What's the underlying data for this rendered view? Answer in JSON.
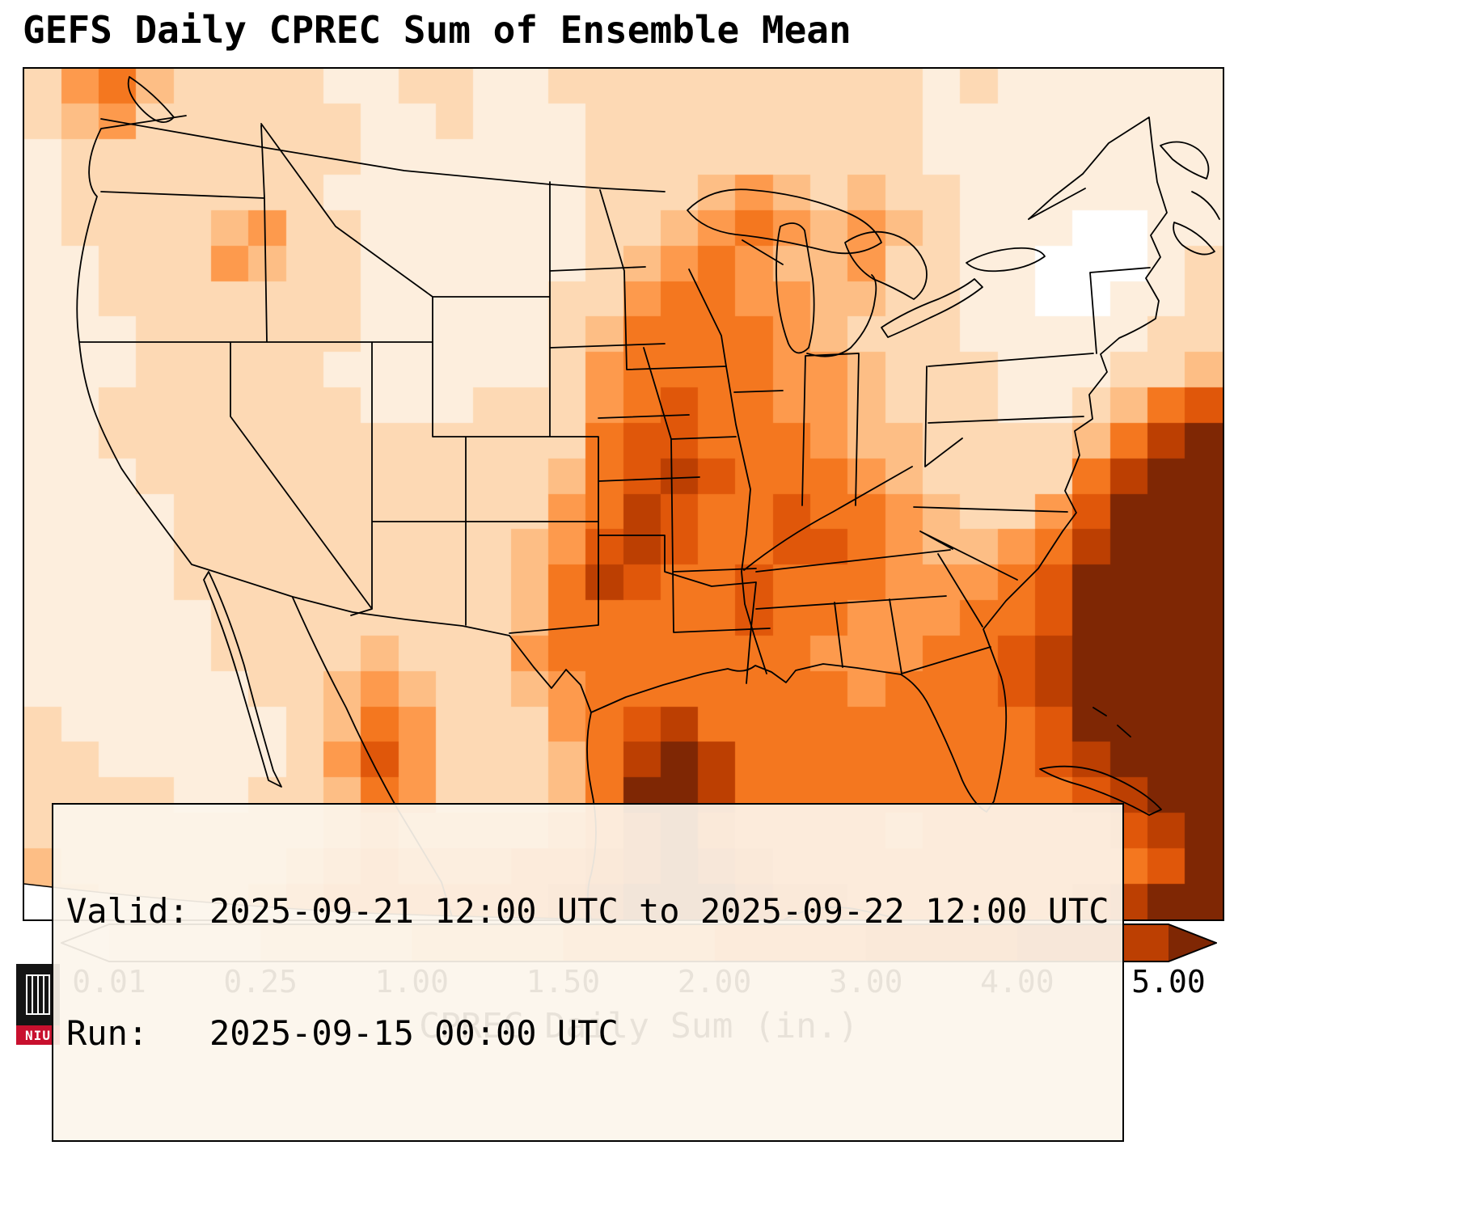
{
  "title": "GEFS Daily CPREC Sum of Ensemble Mean",
  "annotation": {
    "valid_line": "Valid: 2025-09-21 12:00 UTC to 2025-09-22 12:00 UTC",
    "run_line": "Run:   2025-09-15 00:00 UTC"
  },
  "colorbar": {
    "label": "CPREC Daily Sum (in.)",
    "ticks": [
      "0.01",
      "0.25",
      "1.00",
      "1.50",
      "2.00",
      "3.00",
      "4.00",
      "5.00"
    ],
    "segment_colors": [
      "#fdeedd",
      "#fdd9b4",
      "#fdbe85",
      "#fd9a4d",
      "#f4771f",
      "#e0570a",
      "#bc3f02"
    ],
    "under_color": "#ffffff",
    "over_color": "#7f2704"
  },
  "logo": {
    "text": "NIU",
    "bg": "#141414",
    "accent": "#c8102e",
    "icon": "castle-tower-icon"
  },
  "chart_data": {
    "type": "heatmap",
    "title": "GEFS Daily CPREC Sum of Ensemble Mean",
    "units": "in.",
    "variable": "CPREC Daily Sum",
    "colormap": "Oranges",
    "levels": [
      0.01,
      0.25,
      1.0,
      1.5,
      2.0,
      3.0,
      4.0,
      5.0
    ],
    "extend": "both",
    "region": "CONUS and adjacent ocean (Lambert conformal)",
    "valid": "2025-09-21 12:00 UTC to 2025-09-22 12:00 UTC",
    "run": "2025-09-15 00:00 UTC",
    "legend_position": "bottom",
    "grid": {
      "cols": 32,
      "rows": 24,
      "values": [
        [
          0.5,
          1.5,
          2.5,
          1.2,
          0.5,
          0.3,
          0.3,
          0.3,
          0.2,
          0.2,
          0.3,
          0.3,
          0.2,
          0.2,
          0.3,
          0.3,
          0.5,
          0.5,
          0.3,
          0.5,
          0.3,
          0.3,
          0.5,
          0.3,
          0.2,
          0.3,
          0.2,
          0.1,
          0.1,
          0.05,
          0.05,
          0.05
        ],
        [
          0.3,
          1.2,
          1.8,
          0.8,
          0.5,
          0.3,
          0.3,
          0.3,
          0.3,
          0.2,
          0.2,
          0.3,
          0.2,
          0.2,
          0.2,
          0.3,
          0.3,
          0.5,
          0.3,
          0.3,
          0.3,
          0.3,
          0.3,
          0.3,
          0.2,
          0.2,
          0.2,
          0.1,
          0.1,
          0.05,
          0.05,
          0.1
        ],
        [
          0.2,
          0.5,
          0.8,
          0.5,
          0.3,
          0.3,
          0.5,
          0.3,
          0.3,
          0.2,
          0.2,
          0.2,
          0.2,
          0.2,
          0.2,
          0.3,
          0.3,
          0.3,
          0.3,
          0.5,
          0.5,
          0.3,
          0.3,
          0.3,
          0.2,
          0.2,
          0.1,
          0.1,
          0.1,
          0.1,
          0.1,
          0.1
        ],
        [
          0.2,
          0.3,
          0.5,
          0.3,
          0.3,
          0.5,
          0.5,
          0.3,
          0.2,
          0.2,
          0.2,
          0.2,
          0.2,
          0.2,
          0.2,
          0.3,
          0.5,
          0.8,
          1.2,
          1.7,
          1.2,
          0.8,
          1.2,
          0.8,
          0.3,
          0.2,
          0.1,
          0.1,
          0.1,
          0.1,
          0.1,
          0.2
        ],
        [
          0.2,
          0.3,
          0.3,
          0.3,
          0.5,
          1.2,
          1.7,
          0.8,
          0.3,
          0.2,
          0.2,
          0.2,
          0.2,
          0.2,
          0.2,
          0.3,
          0.8,
          1.2,
          1.7,
          2.5,
          1.7,
          1.2,
          1.7,
          1.2,
          0.5,
          0.2,
          0.1,
          0.05,
          0,
          0,
          0.1,
          0.2
        ],
        [
          0.2,
          0.2,
          0.3,
          0.3,
          0.5,
          1.7,
          1.2,
          0.5,
          0.3,
          0.2,
          0.2,
          0.2,
          0.2,
          0.2,
          0.2,
          0.5,
          1.2,
          1.7,
          2.5,
          1.7,
          1.2,
          1.2,
          1.7,
          0.8,
          0.3,
          0.2,
          0.1,
          0,
          0,
          0,
          0.1,
          0.3
        ],
        [
          0.2,
          0.2,
          0.3,
          0.3,
          0.5,
          0.8,
          0.8,
          0.5,
          0.3,
          0.2,
          0.2,
          0.2,
          0.2,
          0.2,
          0.3,
          0.8,
          1.7,
          2.5,
          2.5,
          1.7,
          1.7,
          1.2,
          1.2,
          0.8,
          0.3,
          0.2,
          0.1,
          0,
          0,
          0.1,
          0.2,
          0.3
        ],
        [
          0.2,
          0.2,
          0.2,
          0.3,
          0.3,
          0.5,
          0.5,
          0.3,
          0.3,
          0.2,
          0.2,
          0.2,
          0.2,
          0.2,
          0.3,
          1.2,
          2.5,
          2.5,
          2.5,
          2.5,
          1.7,
          1.2,
          0.8,
          0.5,
          0.3,
          0.2,
          0.1,
          0.1,
          0.1,
          0.2,
          0.3,
          0.5
        ],
        [
          0.2,
          0.2,
          0.2,
          0.3,
          0.3,
          0.3,
          0.5,
          0.3,
          0.2,
          0.2,
          0.2,
          0.2,
          0.2,
          0.2,
          0.5,
          1.7,
          2.5,
          2.5,
          2.5,
          2.5,
          1.7,
          1.7,
          1.2,
          0.8,
          0.5,
          0.3,
          0.2,
          0.1,
          0.2,
          0.5,
          0.8,
          1.2
        ],
        [
          0.2,
          0.2,
          0.3,
          0.3,
          0.3,
          0.5,
          0.8,
          0.5,
          0.3,
          0.2,
          0.2,
          0.2,
          0.3,
          0.3,
          0.5,
          1.7,
          2.5,
          3.5,
          2.5,
          2.5,
          1.7,
          1.7,
          1.2,
          0.8,
          0.5,
          0.3,
          0.2,
          0.2,
          0.5,
          1.2,
          2.5,
          3.5
        ],
        [
          0.2,
          0.2,
          0.3,
          0.5,
          0.3,
          0.3,
          0.8,
          0.5,
          0.3,
          0.3,
          0.3,
          0.3,
          0.3,
          0.3,
          0.8,
          2.5,
          3.5,
          3.5,
          2.5,
          2.5,
          2.5,
          1.7,
          1.2,
          1.2,
          0.8,
          0.5,
          0.3,
          0.5,
          1.2,
          2.5,
          4.5,
          6
        ],
        [
          0.2,
          0.2,
          0.2,
          0.3,
          0.3,
          0.3,
          0.5,
          0.3,
          0.3,
          0.3,
          0.3,
          0.3,
          0.3,
          0.5,
          1.2,
          2.5,
          3.5,
          4.5,
          3.5,
          2.5,
          2.5,
          2.5,
          1.7,
          1.2,
          0.8,
          0.5,
          0.5,
          0.8,
          2.5,
          4.5,
          6,
          6
        ],
        [
          0.2,
          0.2,
          0.2,
          0.2,
          0.3,
          0.3,
          0.3,
          0.3,
          0.3,
          0.3,
          0.3,
          0.3,
          0.5,
          0.8,
          1.7,
          2.5,
          4.5,
          3.5,
          2.5,
          2.5,
          3.5,
          2.5,
          2.5,
          1.7,
          1.2,
          0.8,
          0.8,
          1.7,
          3.5,
          6,
          6,
          6
        ],
        [
          0.2,
          0.2,
          0.2,
          0.2,
          0.3,
          0.3,
          0.3,
          0.3,
          0.3,
          0.3,
          0.3,
          0.5,
          0.8,
          1.2,
          1.7,
          3.5,
          4.5,
          3.5,
          2.5,
          2.5,
          3.5,
          3.5,
          2.5,
          1.7,
          1.2,
          1.2,
          1.7,
          2.5,
          4.5,
          6,
          6,
          6
        ],
        [
          0.1,
          0.2,
          0.2,
          0.2,
          0.3,
          0.3,
          0.3,
          0.3,
          0.3,
          0.3,
          0.3,
          0.5,
          0.8,
          1.2,
          2.5,
          4.5,
          3.5,
          2.5,
          2.5,
          3.5,
          2.5,
          2.5,
          2.5,
          1.7,
          1.7,
          1.7,
          2.5,
          3.5,
          6,
          6,
          6,
          6
        ],
        [
          0.1,
          0.2,
          0.2,
          0.2,
          0.2,
          0.3,
          0.3,
          0.3,
          0.3,
          0.5,
          0.5,
          0.5,
          0.8,
          1.2,
          2.5,
          2.5,
          2.5,
          2.5,
          2.5,
          3.5,
          2.5,
          2.5,
          1.7,
          1.7,
          1.7,
          2.5,
          2.5,
          3.5,
          6,
          6,
          6,
          6
        ],
        [
          0.1,
          0.1,
          0.2,
          0.2,
          0.2,
          0.3,
          0.3,
          0.3,
          0.5,
          1.2,
          0.8,
          0.5,
          0.8,
          1.7,
          2.5,
          2.5,
          2.5,
          2.5,
          2.5,
          2.5,
          2.5,
          1.7,
          1.7,
          1.7,
          2.5,
          2.5,
          3.5,
          4.5,
          6,
          6,
          6,
          6
        ],
        [
          0.2,
          0.1,
          0.2,
          0.2,
          0.2,
          0.2,
          0.3,
          0.3,
          1.2,
          1.7,
          1.2,
          0.5,
          0.5,
          1.2,
          1.7,
          2.5,
          2.5,
          2.5,
          2.5,
          2.5,
          2.5,
          2.5,
          1.7,
          2.5,
          2.5,
          2.5,
          3.5,
          4.5,
          6,
          6,
          6,
          6
        ],
        [
          0.3,
          0.2,
          0.2,
          0.2,
          0.2,
          0.2,
          0.2,
          0.3,
          1.2,
          2.5,
          1.7,
          0.8,
          0.5,
          0.8,
          1.7,
          2.5,
          3.5,
          4.5,
          2.5,
          2.5,
          2.5,
          2.5,
          2.5,
          2.5,
          2.5,
          2.5,
          2.5,
          3.5,
          6,
          6,
          6,
          6
        ],
        [
          0.3,
          0.3,
          0.2,
          0.2,
          0.2,
          0.2,
          0.2,
          0.3,
          1.7,
          3.5,
          1.7,
          0.8,
          0.5,
          0.8,
          1.2,
          2.5,
          4.5,
          6,
          4.5,
          2.5,
          2.5,
          2.5,
          2.5,
          2.5,
          2.5,
          2.5,
          2.5,
          3.5,
          4.5,
          6,
          6,
          6
        ],
        [
          0.5,
          0.3,
          0.3,
          0.3,
          0.2,
          0.2,
          0.3,
          0.5,
          1.2,
          2.5,
          1.7,
          0.8,
          0.8,
          0.8,
          1.2,
          2.5,
          6,
          6,
          4.5,
          2.5,
          2.5,
          2.5,
          2.5,
          2.5,
          2.5,
          2.5,
          2.5,
          2.5,
          3.5,
          4.5,
          6,
          6
        ],
        [
          0.8,
          0.5,
          0.3,
          0.3,
          0.3,
          0.3,
          0.5,
          0.8,
          1.2,
          1.7,
          1.2,
          1.2,
          1.2,
          1.2,
          1.7,
          2.5,
          4.5,
          6,
          3.5,
          2.5,
          2.5,
          2.5,
          2.5,
          1.7,
          2.5,
          2.5,
          2.5,
          2.5,
          2.5,
          3.5,
          4.5,
          6
        ],
        [
          1.2,
          0.8,
          0.5,
          0.5,
          0.5,
          0.5,
          0.8,
          1.2,
          1.7,
          2.5,
          1.7,
          1.7,
          1.7,
          2.5,
          2.5,
          3.5,
          4.5,
          6,
          4.5,
          3.5,
          2.5,
          2.5,
          2.5,
          2.5,
          2.5,
          2.5,
          2.5,
          2.5,
          2.5,
          2.5,
          3.5,
          6
        ],
        [
          1.2,
          1.2,
          0.8,
          0.8,
          0.8,
          0.8,
          1.2,
          1.7,
          2.5,
          2.5,
          2.5,
          2.5,
          2.5,
          2.5,
          3.5,
          4.5,
          6,
          6,
          6,
          4.5,
          3.5,
          3.5,
          2.5,
          2.5,
          2.5,
          2.5,
          2.5,
          2.5,
          3.5,
          4.5,
          6,
          6
        ]
      ]
    }
  }
}
